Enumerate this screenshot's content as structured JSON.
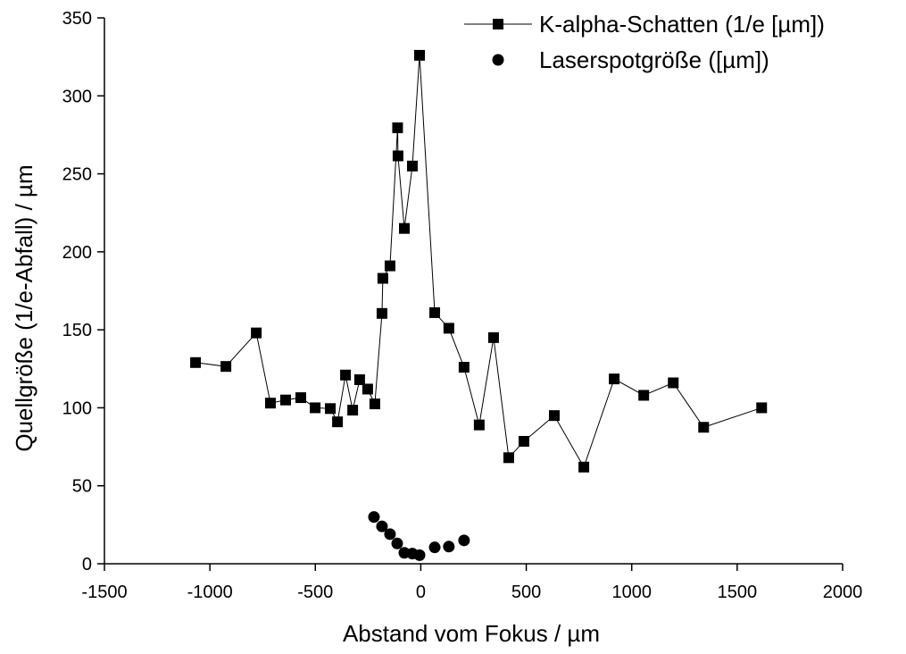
{
  "chart_data": {
    "type": "scatter",
    "xlabel": "Abstand vom Fokus / µm",
    "ylabel": "Quellgröße (1/e-Abfall) / µm",
    "xlim": [
      -1500,
      2000
    ],
    "xticks": [
      -1500,
      -1000,
      -500,
      0,
      500,
      1000,
      1500,
      2000
    ],
    "ylim": [
      0,
      350
    ],
    "yticks": [
      0,
      50,
      100,
      150,
      200,
      250,
      300,
      350
    ],
    "legend": "upper right",
    "series": [
      {
        "name": "K-alpha-Schatten (1/e [µm])",
        "color": "#000000",
        "marker": "square",
        "line": true,
        "x": [
          -1068,
          -924,
          -780,
          -713,
          -641,
          -569,
          -501,
          -429,
          -395,
          -357,
          -323,
          -290,
          -252,
          -218,
          -184,
          -180,
          -146,
          -110,
          -108,
          -78,
          -40,
          -6,
          66,
          133,
          205,
          277,
          345,
          417,
          489,
          633,
          773,
          917,
          1057,
          1197,
          1341,
          1616
        ],
        "values": [
          129,
          126.5,
          148,
          103,
          105,
          106.5,
          100,
          99.5,
          91,
          121,
          98.5,
          118,
          112,
          102.5,
          160.5,
          183,
          191,
          279.5,
          261.5,
          215,
          255,
          326,
          161,
          151,
          126,
          89,
          145,
          68,
          78.5,
          95,
          62,
          118.5,
          108,
          116,
          87.5,
          100
        ]
      },
      {
        "name": "Laserspotgröße ([µm])",
        "color": "#000000",
        "marker": "circle",
        "line": false,
        "x": [
          -222,
          -184,
          -146,
          -112,
          -78,
          -40,
          -6,
          66,
          133,
          205
        ],
        "values": [
          30,
          24,
          19,
          13,
          7,
          6.5,
          5.5,
          10.5,
          11,
          15
        ]
      }
    ]
  }
}
